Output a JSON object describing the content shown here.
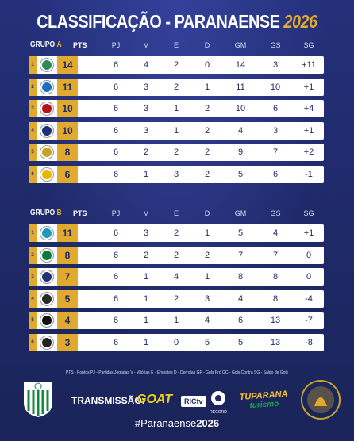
{
  "title": {
    "main": "CLASSIFICAÇÃO - PARANAENSE",
    "year": "2026"
  },
  "columns": [
    "PJ",
    "V",
    "E",
    "D",
    "GM",
    "GS",
    "SG"
  ],
  "pts_label": "PTS",
  "groups": [
    {
      "label_prefix": "GRUPO",
      "label_letter": "A",
      "rows": [
        {
          "pos": "1",
          "pts": "14",
          "stats": [
            "6",
            "4",
            "2",
            "0",
            "14",
            "3",
            "+11"
          ],
          "crest_color": "#2e8b57"
        },
        {
          "pos": "2",
          "pts": "11",
          "stats": [
            "6",
            "3",
            "2",
            "1",
            "11",
            "10",
            "+1"
          ],
          "crest_color": "#1f6fc0"
        },
        {
          "pos": "3",
          "pts": "10",
          "stats": [
            "6",
            "3",
            "1",
            "2",
            "10",
            "6",
            "+4"
          ],
          "crest_color": "#b5121b"
        },
        {
          "pos": "4",
          "pts": "10",
          "stats": [
            "6",
            "3",
            "1",
            "2",
            "4",
            "3",
            "+1"
          ],
          "crest_color": "#1d2f7a"
        },
        {
          "pos": "5",
          "pts": "8",
          "stats": [
            "6",
            "2",
            "2",
            "2",
            "9",
            "7",
            "+2"
          ],
          "crest_color": "#c9a227"
        },
        {
          "pos": "6",
          "pts": "6",
          "stats": [
            "6",
            "1",
            "3",
            "2",
            "5",
            "6",
            "-1"
          ],
          "crest_color": "#e5b700"
        }
      ]
    },
    {
      "label_prefix": "GRUPO",
      "label_letter": "B",
      "rows": [
        {
          "pos": "1",
          "pts": "11",
          "stats": [
            "6",
            "3",
            "2",
            "1",
            "5",
            "4",
            "+1"
          ],
          "crest_color": "#1d9bb8"
        },
        {
          "pos": "2",
          "pts": "8",
          "stats": [
            "6",
            "2",
            "2",
            "2",
            "7",
            "7",
            "0"
          ],
          "crest_color": "#0f7a3a"
        },
        {
          "pos": "3",
          "pts": "7",
          "stats": [
            "6",
            "1",
            "4",
            "1",
            "8",
            "8",
            "0"
          ],
          "crest_color": "#23307a"
        },
        {
          "pos": "4",
          "pts": "5",
          "stats": [
            "6",
            "1",
            "2",
            "3",
            "4",
            "8",
            "-4"
          ],
          "crest_color": "#2a2a2a"
        },
        {
          "pos": "5",
          "pts": "4",
          "stats": [
            "6",
            "1",
            "1",
            "4",
            "6",
            "13",
            "-7"
          ],
          "crest_color": "#111111"
        },
        {
          "pos": "6",
          "pts": "3",
          "stats": [
            "6",
            "1",
            "0",
            "5",
            "5",
            "13",
            "-8"
          ],
          "crest_color": "#222222"
        }
      ]
    }
  ],
  "legend": "PTS - Pontos   PJ - Partidas Jogadas   V - Vitórias   E - Empates   D - Derrotas   GP - Gols Pró   GC - Gols Contra   SG - Saldo de Gols",
  "footer": {
    "transmission_label": "TRANSMISSÃO:",
    "sponsors": {
      "goat": "GOAT",
      "rictv": "RICtv",
      "record": "RECORD",
      "tp_top": "TUPARANA",
      "tp_bottom": "turismo"
    },
    "hashtag_prefix": "#Paranaense",
    "hashtag_year": "2026"
  },
  "colors": {
    "background": "#1f2a66",
    "accent_gold": "#e1a92e",
    "row_bg": "#ffffff",
    "text_dark": "#1f2a66"
  }
}
